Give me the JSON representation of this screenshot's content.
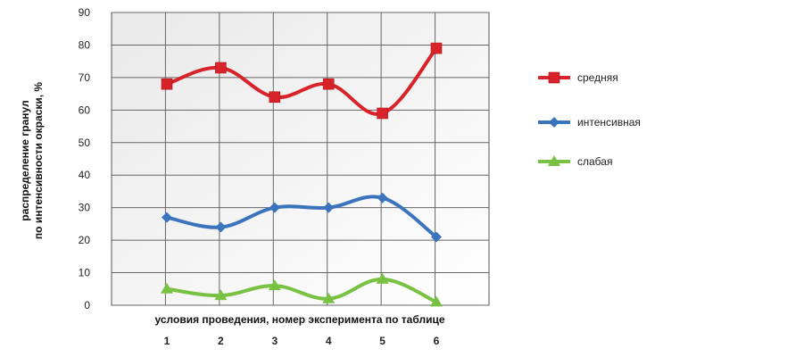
{
  "chart_data": {
    "type": "line",
    "title": "",
    "xlabel": "условия проведения, номер эксперимента по таблице",
    "ylabel_lines": [
      "распределение гранул",
      "по интенсивности окраски, %"
    ],
    "categories": [
      "1",
      "2",
      "3",
      "4",
      "5",
      "6"
    ],
    "yticks": [
      "0",
      "10",
      "20",
      "30",
      "40",
      "50",
      "60",
      "70",
      "80",
      "90"
    ],
    "ylim": [
      0,
      90
    ],
    "grid": true,
    "legend_position": "right",
    "series": [
      {
        "name": "средняя",
        "color": "#d9232a",
        "marker": "square",
        "values": [
          68,
          73,
          64,
          68,
          59,
          79
        ]
      },
      {
        "name": "интенсивная",
        "color": "#3b74bd",
        "marker": "diamond",
        "values": [
          27,
          24,
          30,
          30,
          33,
          21
        ]
      },
      {
        "name": "слабая",
        "color": "#79c143",
        "marker": "triangle",
        "values": [
          5,
          3,
          6,
          2,
          8,
          1
        ]
      }
    ]
  }
}
